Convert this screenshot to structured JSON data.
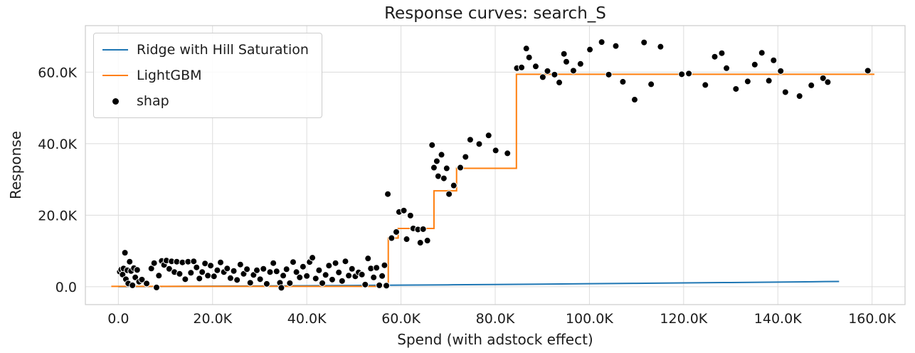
{
  "chart_data": {
    "type": "line",
    "title": "Response curves: search_S",
    "xlabel": "Spend (with adstock effect)",
    "ylabel": "Response",
    "xlim": [
      -7000,
      167000
    ],
    "ylim": [
      -5000,
      73000
    ],
    "grid": true,
    "legend_position": "upper left",
    "xticks": [
      0,
      20000,
      40000,
      60000,
      80000,
      100000,
      120000,
      140000,
      160000
    ],
    "xtick_labels": [
      "0.0",
      "20.0K",
      "40.0K",
      "60.0K",
      "80.0K",
      "100.0K",
      "120.0K",
      "140.0K",
      "160.0K"
    ],
    "yticks": [
      0,
      20000,
      40000,
      60000
    ],
    "ytick_labels": [
      "0.0",
      "20.0K",
      "40.0K",
      "60.0K"
    ],
    "colors": {
      "ridge": "#1f77b4",
      "lightgbm": "#ff7f0e",
      "shap": "#000000",
      "grid": "#dcdcdc",
      "spine": "#cccccc",
      "text": "#1c1c1c"
    },
    "series": [
      {
        "name": "Ridge with Hill Saturation",
        "type": "line",
        "color": "#1f77b4",
        "x": [
          0,
          10000,
          20000,
          30000,
          40000,
          50000,
          60000,
          70000,
          80000,
          90000,
          100000,
          110000,
          120000,
          130000,
          140000,
          150000,
          153000
        ],
        "y": [
          30,
          80,
          140,
          210,
          280,
          360,
          440,
          530,
          630,
          730,
          840,
          950,
          1060,
          1180,
          1300,
          1430,
          1470
        ]
      },
      {
        "name": "LightGBM",
        "type": "step",
        "color": "#ff7f0e",
        "x": [
          -1500,
          57300,
          59400,
          67000,
          71800,
          84500,
          160500
        ],
        "y": [
          100,
          13600,
          16300,
          26800,
          33100,
          59400,
          59400
        ]
      },
      {
        "name": "shap",
        "type": "scatter",
        "color": "#000000",
        "x": [
          300,
          600,
          900,
          1100,
          1400,
          1600,
          1900,
          2100,
          2400,
          2700,
          3000,
          3300,
          3600,
          4000,
          4400,
          5000,
          6000,
          7000,
          7600,
          8100,
          8600,
          9200,
          9700,
          10200,
          10800,
          11300,
          11900,
          12400,
          13000,
          13600,
          14200,
          14800,
          15400,
          16000,
          16600,
          17200,
          17800,
          18400,
          19000,
          19600,
          20300,
          21000,
          21700,
          22400,
          23100,
          23800,
          24500,
          25200,
          25900,
          26600,
          27300,
          28000,
          28700,
          29400,
          30100,
          30800,
          31500,
          32200,
          32900,
          33600,
          34300,
          34600,
          35000,
          35700,
          36400,
          37100,
          37800,
          38500,
          39200,
          40000,
          40600,
          41200,
          41900,
          42600,
          43300,
          44000,
          44700,
          45400,
          46100,
          46800,
          47500,
          48200,
          48900,
          49600,
          50300,
          51000,
          51700,
          52400,
          53000,
          53600,
          54200,
          54800,
          55400,
          56000,
          56500,
          56900,
          57200,
          58000,
          59000,
          59600,
          60600,
          61200,
          62000,
          62600,
          63600,
          64100,
          64700,
          65600,
          66600,
          67000,
          67600,
          67900,
          68600,
          69100,
          69700,
          70200,
          71200,
          72600,
          73700,
          74700,
          76600,
          78600,
          80100,
          82600,
          84600,
          85600,
          86600,
          87200,
          88600,
          90100,
          91100,
          92600,
          93600,
          94600,
          95100,
          96600,
          98100,
          100100,
          102600,
          104100,
          105600,
          107100,
          109600,
          111600,
          113100,
          115100,
          119600,
          121100,
          124600,
          126600,
          128100,
          129100,
          131100,
          133600,
          135100,
          136600,
          138100,
          139100,
          140600,
          141600,
          144600,
          147100,
          149600,
          150600,
          159100
        ],
        "y": [
          4200,
          4800,
          3400,
          5100,
          9500,
          2100,
          4600,
          900,
          7000,
          4400,
          400,
          5200,
          2600,
          4700,
          1400,
          2000,
          900,
          5100,
          6600,
          -200,
          3100,
          7200,
          6100,
          7300,
          5000,
          7100,
          4100,
          7000,
          3600,
          6800,
          2100,
          7000,
          3900,
          7100,
          5400,
          2300,
          4100,
          6500,
          3100,
          5900,
          2900,
          4600,
          6800,
          4100,
          5100,
          2400,
          4400,
          1900,
          6200,
          3600,
          4900,
          1100,
          3300,
          4600,
          2100,
          5000,
          800,
          4100,
          6600,
          4300,
          1100,
          -300,
          3100,
          4900,
          1000,
          6900,
          4100,
          2600,
          5600,
          3000,
          6900,
          8100,
          2300,
          4600,
          1000,
          3300,
          5900,
          2000,
          6600,
          4000,
          1600,
          7100,
          3100,
          5000,
          2900,
          4000,
          3400,
          600,
          7900,
          5100,
          2600,
          5300,
          400,
          3000,
          6000,
          300,
          25900,
          13600,
          15300,
          20900,
          21300,
          13300,
          19900,
          16300,
          16000,
          12300,
          16100,
          12900,
          39600,
          33300,
          35100,
          30900,
          36900,
          30300,
          33100,
          25900,
          28300,
          33300,
          36300,
          41100,
          39900,
          42300,
          38100,
          37300,
          61100,
          61300,
          66600,
          64100,
          61600,
          58600,
          60300,
          59300,
          57100,
          65100,
          62900,
          60400,
          62300,
          66300,
          68400,
          59300,
          67300,
          57300,
          52300,
          68300,
          56600,
          67100,
          59400,
          59600,
          56400,
          64300,
          65300,
          61100,
          55300,
          57400,
          62100,
          65400,
          57600,
          63300,
          60300,
          54400,
          53300,
          56300,
          58300,
          57200,
          60400
        ]
      }
    ]
  }
}
